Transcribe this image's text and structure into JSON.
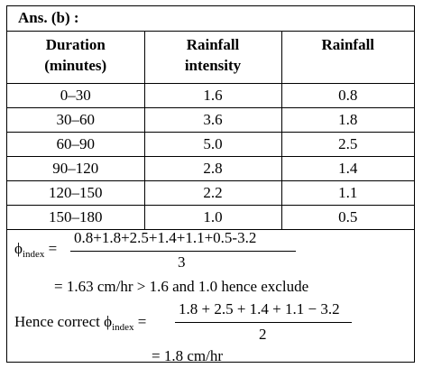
{
  "title": "Ans. (b) :",
  "table": {
    "headers": [
      {
        "line1": "Duration",
        "line2": "(minutes)"
      },
      {
        "line1": "Rainfall",
        "line2": "intensity"
      },
      {
        "line1": "Rainfall",
        "line2": ""
      }
    ],
    "rows": [
      [
        "0–30",
        "1.6",
        "0.8"
      ],
      [
        "30–60",
        "3.6",
        "1.8"
      ],
      [
        "60–90",
        "5.0",
        "2.5"
      ],
      [
        "90–120",
        "2.8",
        "1.4"
      ],
      [
        "120–150",
        "2.2",
        "1.1"
      ],
      [
        "150–180",
        "1.0",
        "0.5"
      ]
    ]
  },
  "calc": {
    "phi_symbol": "ϕ",
    "phi_sub": "index",
    "equals": "=",
    "numerator1": "0.8+1.8+2.5+1.4+1.1+0.5-3.2",
    "denominator1": "3",
    "result1": "= 1.63 cm/hr > 1.6 and 1.0 hence exclude",
    "hence_label": "Hence correct",
    "numerator2": "1.8 + 2.5 + 1.4 + 1.1 − 3.2",
    "denominator2": "2",
    "result2": "= 1.8 cm/hr"
  }
}
